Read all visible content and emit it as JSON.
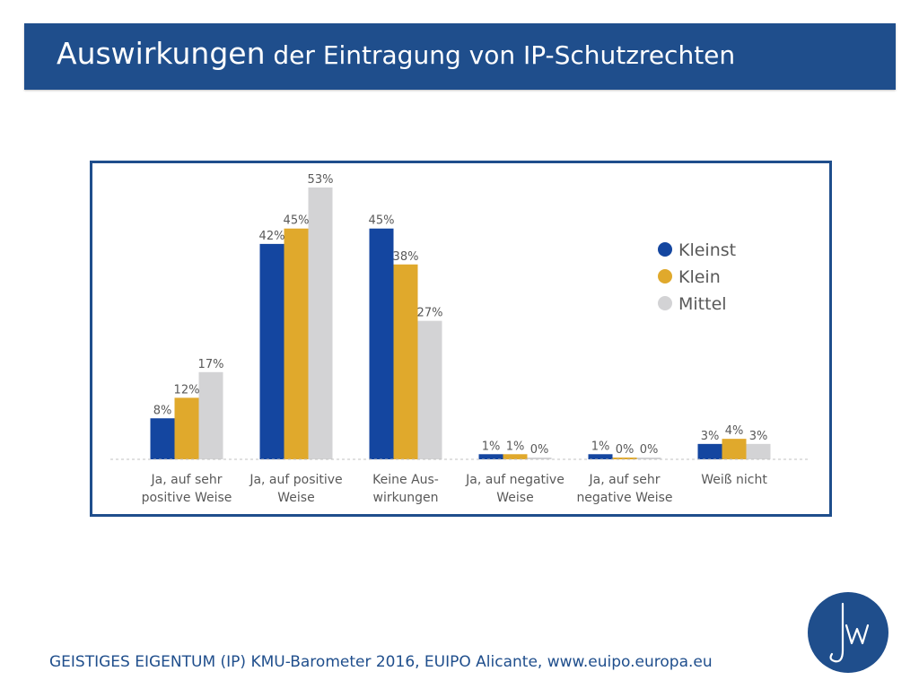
{
  "header": {
    "title_lead": "Auswirkungen",
    "title_rest": " der Eintragung von IP-Schutzrechten"
  },
  "footer": {
    "text": "GEISTIGES EIGENTUM (IP) KMU-Barometer 2016, EUIPO Alicante, www.euipo.europa.eu"
  },
  "logo": {
    "text": "jw",
    "icon": "jw-monogram-logo"
  },
  "colors": {
    "brand": "#1f4e8c",
    "kleinst": "#1446a0",
    "klein": "#e0a92c",
    "mittel": "#d3d3d5",
    "label": "#595959"
  },
  "chart_data": {
    "type": "bar",
    "categories": [
      [
        "Ja, auf sehr",
        "positive Weise"
      ],
      [
        "Ja, auf positive",
        "Weise"
      ],
      [
        "Keine Aus-",
        "wirkungen"
      ],
      [
        "Ja, auf negative",
        "Weise"
      ],
      [
        "Ja, auf sehr",
        "negative Weise"
      ],
      [
        "Weiß nicht"
      ]
    ],
    "series": [
      {
        "name": "Kleinst",
        "color": "#1446a0",
        "values": [
          8,
          42,
          45,
          1,
          1,
          3
        ]
      },
      {
        "name": "Klein",
        "color": "#e0a92c",
        "values": [
          12,
          45,
          38,
          1,
          0,
          4
        ]
      },
      {
        "name": "Mittel",
        "color": "#d3d3d5",
        "values": [
          17,
          53,
          27,
          0,
          0,
          3
        ]
      }
    ],
    "value_suffix": "%",
    "ylim": [
      0,
      53
    ],
    "grid": false,
    "legend_position": "top-right"
  }
}
